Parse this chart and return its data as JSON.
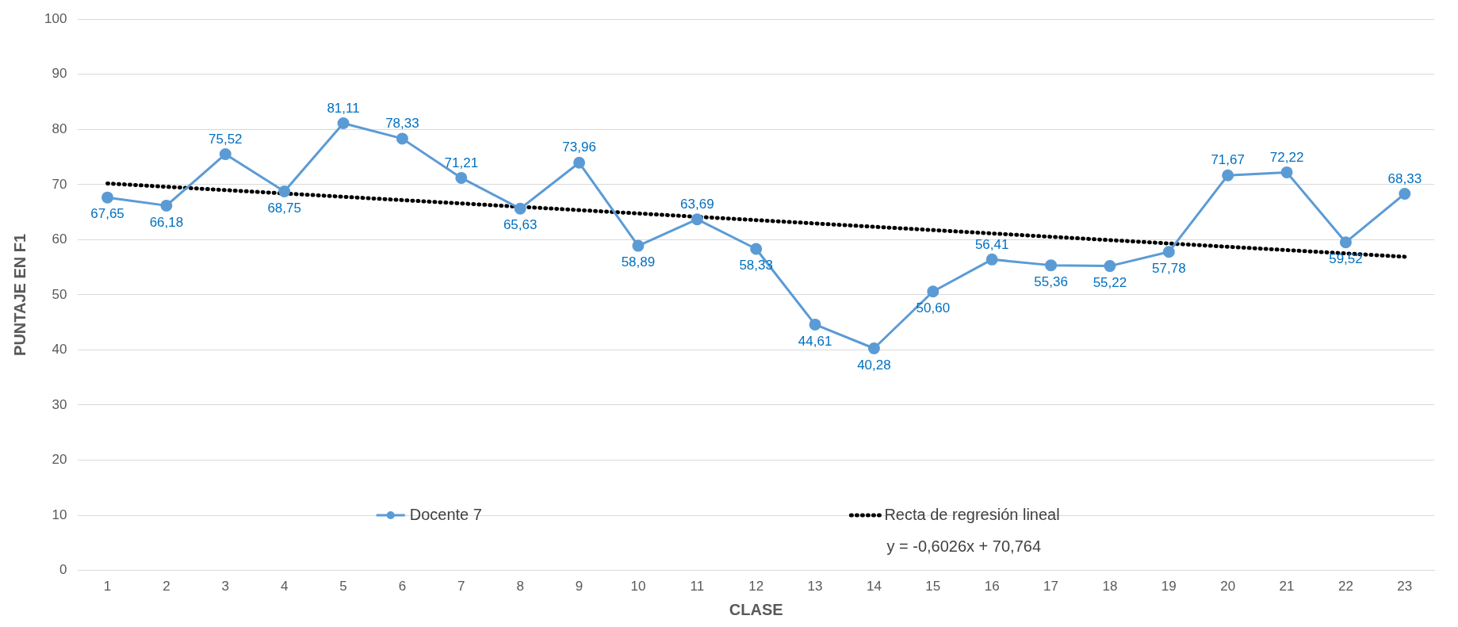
{
  "chart_data": {
    "type": "line",
    "xlabel": "CLASE",
    "ylabel": "PUNTAJE EN F1",
    "x": [
      1,
      2,
      3,
      4,
      5,
      6,
      7,
      8,
      9,
      10,
      11,
      12,
      13,
      14,
      15,
      16,
      17,
      18,
      19,
      20,
      21,
      22,
      23
    ],
    "xlim": [
      0.5,
      23.5
    ],
    "xticks": [
      1,
      2,
      3,
      4,
      5,
      6,
      7,
      8,
      9,
      10,
      11,
      12,
      13,
      14,
      15,
      16,
      17,
      18,
      19,
      20,
      21,
      22,
      23
    ],
    "ylim": [
      0,
      100
    ],
    "yticks": [
      0,
      10,
      20,
      30,
      40,
      50,
      60,
      70,
      80,
      90,
      100
    ],
    "series": [
      {
        "name": "Docente 7",
        "color": "#5b9bd5",
        "marker": "circle",
        "line_style": "solid",
        "values": [
          67.65,
          66.18,
          75.52,
          68.75,
          81.11,
          78.33,
          71.21,
          65.63,
          73.96,
          58.89,
          63.69,
          58.33,
          44.61,
          40.28,
          50.6,
          56.41,
          55.36,
          55.22,
          57.78,
          71.67,
          72.22,
          59.52,
          68.33
        ],
        "value_labels": [
          "67,65",
          "66,18",
          "75,52",
          "68,75",
          "81,11",
          "78,33",
          "71,21",
          "65,63",
          "73,96",
          "58,89",
          "63,69",
          "58,33",
          "44,61",
          "40,28",
          "50,60",
          "56,41",
          "55,36",
          "55,22",
          "57,78",
          "71,67",
          "72,22",
          "59,52",
          "68,33"
        ]
      },
      {
        "name": "Recta de regresión lineal",
        "type": "line",
        "color": "#000000",
        "marker": "none",
        "line_style": "dotted",
        "x": [
          1,
          23
        ],
        "values": [
          70.2,
          56.9
        ]
      }
    ],
    "grid": "y",
    "legend": "bottom",
    "annotations": [
      "y = -0,6026x + 70,764"
    ]
  }
}
